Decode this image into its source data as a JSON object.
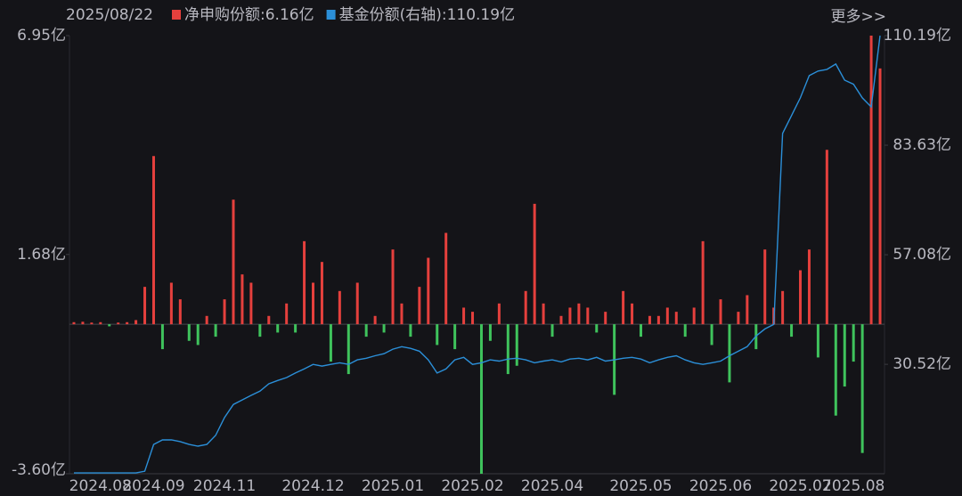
{
  "chart_data": {
    "type": "bar-line",
    "date": "2025/08/22",
    "more_link": "更多>>",
    "categories": [
      null,
      null,
      null,
      "2024.08",
      null,
      null,
      null,
      null,
      null,
      "2024.09",
      null,
      null,
      null,
      null,
      null,
      null,
      null,
      "2024.11",
      null,
      null,
      null,
      null,
      null,
      null,
      null,
      null,
      null,
      "2024.12",
      null,
      null,
      null,
      null,
      null,
      null,
      null,
      null,
      "2025.01",
      null,
      null,
      null,
      null,
      null,
      null,
      null,
      null,
      "2025.02",
      null,
      null,
      null,
      null,
      null,
      null,
      null,
      null,
      "2025.04",
      null,
      null,
      null,
      null,
      null,
      null,
      null,
      null,
      null,
      "2025.05",
      null,
      null,
      null,
      null,
      null,
      null,
      null,
      null,
      "2025.06",
      null,
      null,
      null,
      null,
      null,
      null,
      null,
      null,
      "2025.07",
      null,
      null,
      null,
      null,
      null,
      "2025.08",
      null,
      null,
      null
    ],
    "series": [
      {
        "name": "净申购份额:6.16亿",
        "color": "#e5403d",
        "negative_color": "#3fc35c",
        "axis": "y",
        "values": [
          0.05,
          0.06,
          0.04,
          0.05,
          -0.05,
          0.04,
          0.05,
          0.1,
          0.9,
          4.05,
          -0.6,
          1.0,
          0.6,
          -0.4,
          -0.5,
          0.2,
          -0.3,
          0.6,
          3.0,
          1.2,
          1.0,
          -0.3,
          0.2,
          -0.2,
          0.5,
          -0.2,
          2.0,
          1.0,
          1.5,
          -0.9,
          0.8,
          -1.2,
          1.0,
          -0.3,
          0.2,
          -0.2,
          1.8,
          0.5,
          -0.3,
          0.9,
          1.6,
          -0.5,
          2.2,
          -0.6,
          0.4,
          0.3,
          -3.6,
          -0.4,
          0.5,
          -1.2,
          -1.0,
          0.8,
          2.9,
          0.5,
          -0.3,
          0.2,
          0.4,
          0.5,
          0.4,
          -0.2,
          0.3,
          -1.7,
          0.8,
          0.5,
          -0.3,
          0.2,
          0.2,
          0.4,
          0.3,
          -0.3,
          0.4,
          2.0,
          -0.5,
          0.6,
          -1.4,
          0.3,
          0.7,
          -0.6,
          1.8,
          0.4,
          0.8,
          -0.3,
          1.3,
          1.8,
          -0.8,
          4.2,
          -2.2,
          -1.5,
          -0.9,
          -3.1,
          6.95,
          6.16
        ]
      },
      {
        "name": "基金份额(右轴):110.19亿",
        "color": "#2b8fd8",
        "axis": "y2",
        "values": [
          4.2,
          4.2,
          4.2,
          4.2,
          4.2,
          4.2,
          4.2,
          4.2,
          4.6,
          11.1,
          12.2,
          12.2,
          11.8,
          11.1,
          10.7,
          11.1,
          13.3,
          17.6,
          20.8,
          21.9,
          23.0,
          24.0,
          25.8,
          26.6,
          27.3,
          28.4,
          29.4,
          30.5,
          30.1,
          30.5,
          30.9,
          30.5,
          31.6,
          32.0,
          32.6,
          33.1,
          34.2,
          34.8,
          34.4,
          33.7,
          31.6,
          28.4,
          29.4,
          31.6,
          32.2,
          30.5,
          30.9,
          31.6,
          31.3,
          31.8,
          32.0,
          31.6,
          30.9,
          31.3,
          31.6,
          31.1,
          31.8,
          32.0,
          31.6,
          32.2,
          31.3,
          31.6,
          32.0,
          32.2,
          31.8,
          30.9,
          31.6,
          32.2,
          32.6,
          31.6,
          30.9,
          30.5,
          30.9,
          31.3,
          32.6,
          33.7,
          34.8,
          37.4,
          39.1,
          40.2,
          86.5,
          90.8,
          95.1,
          100.5,
          101.6,
          102.0,
          103.3,
          99.4,
          98.4,
          95.1,
          92.9,
          110.19
        ]
      }
    ],
    "ylim": [
      -3.6,
      6.95
    ],
    "yticks": [
      {
        "value": 6.95,
        "label": "6.95亿"
      },
      {
        "value": 1.68,
        "label": "1.68亿"
      },
      {
        "value": -3.6,
        "label": "-3.60亿"
      }
    ],
    "y2lim": [
      4.0,
      110.19
    ],
    "y2ticks": [
      {
        "value": 110.19,
        "label": "110.19亿"
      },
      {
        "value": 83.63,
        "label": "83.63亿"
      },
      {
        "value": 57.08,
        "label": "57.08亿"
      },
      {
        "value": 30.52,
        "label": "30.52亿"
      }
    ]
  }
}
